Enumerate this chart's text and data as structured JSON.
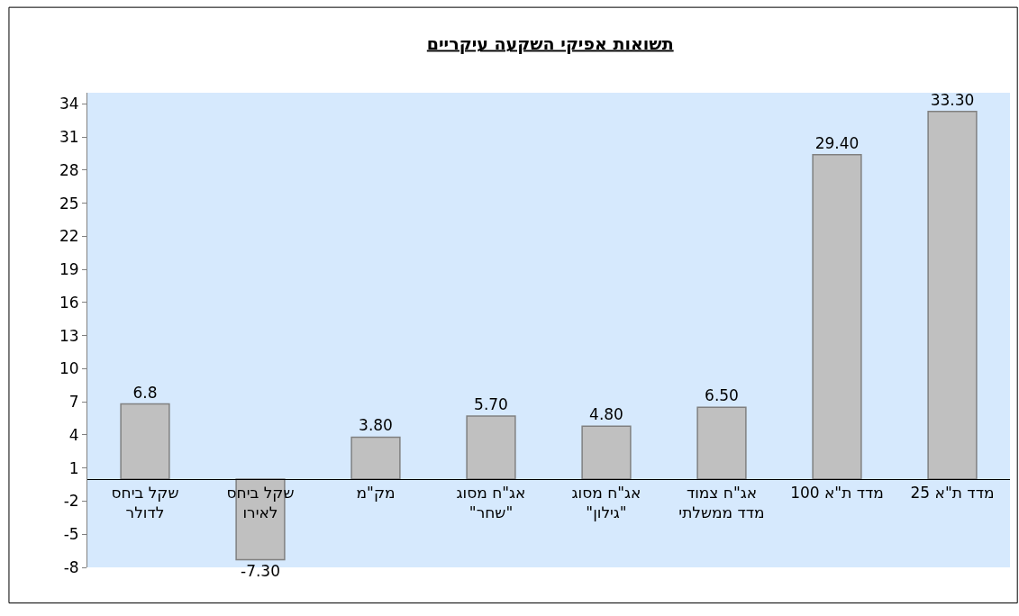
{
  "chart_data": {
    "type": "bar",
    "title": "תשואות אפיקי השקעה עיקריים",
    "categories": [
      "שקל ביחס\nלדולר",
      "שקל ביחס\nלאירו",
      "מק\"מ",
      "אג\"ח מסוג\n\"שחר\"",
      "אג\"ח מסוג\n\"גילון\"",
      "אג\"ח צמוד\nמדד ממשלתי",
      "מדד ת\"א 100",
      "מדד ת\"א 25"
    ],
    "values": [
      6.8,
      -7.3,
      3.8,
      5.7,
      4.8,
      6.5,
      29.4,
      33.3
    ],
    "value_labels": [
      "6.8",
      "-7.30",
      "3.80",
      "5.70",
      "4.80",
      "6.50",
      "29.40",
      "33.30"
    ],
    "color": "#c0c0c0",
    "ylim": [
      -8,
      35
    ],
    "yticks": [
      -8,
      -5,
      -2,
      1,
      4,
      7,
      10,
      13,
      16,
      19,
      22,
      25,
      28,
      31,
      34
    ],
    "grid": false,
    "legend": false
  }
}
